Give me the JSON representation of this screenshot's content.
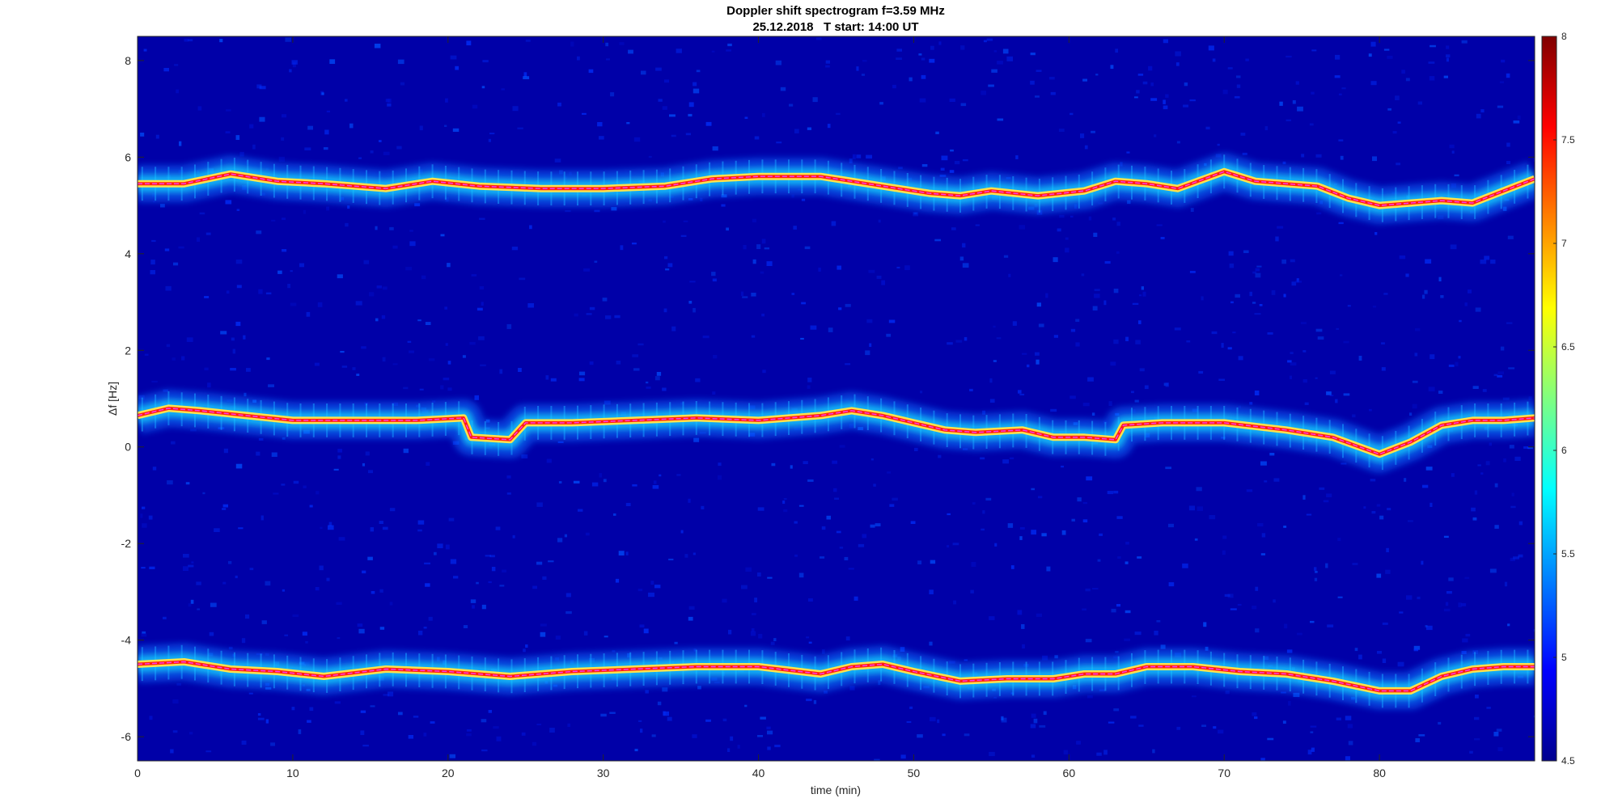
{
  "chart_data": {
    "type": "heatmap",
    "title": "Doppler shift spectrogram f=3.59 MHz",
    "subtitle": "25.12.2018   T start: 14:00 UT",
    "xlabel": "time (min)",
    "ylabel": "Δf [Hz]",
    "xlim": [
      0,
      90
    ],
    "ylim": [
      -6.5,
      8.5
    ],
    "x_ticks": [
      0,
      10,
      20,
      30,
      40,
      50,
      60,
      70,
      80
    ],
    "y_ticks": [
      8,
      6,
      4,
      2,
      0,
      -2,
      -4,
      -6
    ],
    "colorbar": {
      "colormap": "jet",
      "range": [
        4.5,
        8
      ],
      "ticks": [
        "8",
        "7.5",
        "7",
        "6.5",
        "6",
        "5.5",
        "5",
        "4.5"
      ]
    },
    "series": [
      {
        "x": [
          0,
          3,
          6,
          9,
          12,
          16,
          19,
          22,
          26,
          30,
          34,
          37,
          40,
          44,
          46,
          49,
          51,
          53,
          55,
          58,
          61,
          63,
          65,
          67,
          70,
          72,
          74,
          76,
          78,
          80,
          82,
          84,
          86,
          88,
          90
        ],
        "y": [
          5.45,
          5.45,
          5.65,
          5.5,
          5.45,
          5.35,
          5.5,
          5.4,
          5.35,
          5.35,
          5.4,
          5.55,
          5.6,
          5.6,
          5.5,
          5.35,
          5.25,
          5.2,
          5.3,
          5.2,
          5.3,
          5.5,
          5.45,
          5.35,
          5.7,
          5.5,
          5.45,
          5.4,
          5.15,
          5.0,
          5.05,
          5.1,
          5.05,
          5.3,
          5.55
        ]
      },
      {
        "x": [
          0,
          2,
          4,
          7,
          10,
          14,
          18,
          21,
          21.5,
          24,
          25,
          28,
          32,
          36,
          40,
          44,
          46,
          48,
          50,
          52,
          54,
          57,
          59,
          61,
          63,
          63.5,
          66,
          70,
          74,
          77,
          80,
          82,
          84,
          86,
          88,
          90
        ],
        "y": [
          0.65,
          0.8,
          0.75,
          0.65,
          0.55,
          0.55,
          0.55,
          0.6,
          0.2,
          0.15,
          0.5,
          0.5,
          0.55,
          0.6,
          0.55,
          0.65,
          0.75,
          0.65,
          0.5,
          0.35,
          0.3,
          0.35,
          0.2,
          0.2,
          0.15,
          0.45,
          0.5,
          0.5,
          0.35,
          0.2,
          -0.15,
          0.1,
          0.45,
          0.55,
          0.55,
          0.6
        ]
      },
      {
        "x": [
          0,
          3,
          6,
          9,
          12,
          16,
          20,
          24,
          28,
          32,
          36,
          40,
          44,
          46,
          48,
          50,
          53,
          56,
          59,
          61,
          63,
          65,
          68,
          71,
          74,
          77,
          80,
          82,
          84,
          86,
          88,
          90
        ],
        "y": [
          -4.5,
          -4.45,
          -4.6,
          -4.65,
          -4.75,
          -4.6,
          -4.65,
          -4.75,
          -4.65,
          -4.6,
          -4.55,
          -4.55,
          -4.7,
          -4.55,
          -4.5,
          -4.65,
          -4.85,
          -4.8,
          -4.8,
          -4.7,
          -4.7,
          -4.55,
          -4.55,
          -4.65,
          -4.7,
          -4.85,
          -5.05,
          -5.05,
          -4.75,
          -4.6,
          -4.55,
          -4.55
        ]
      }
    ]
  }
}
